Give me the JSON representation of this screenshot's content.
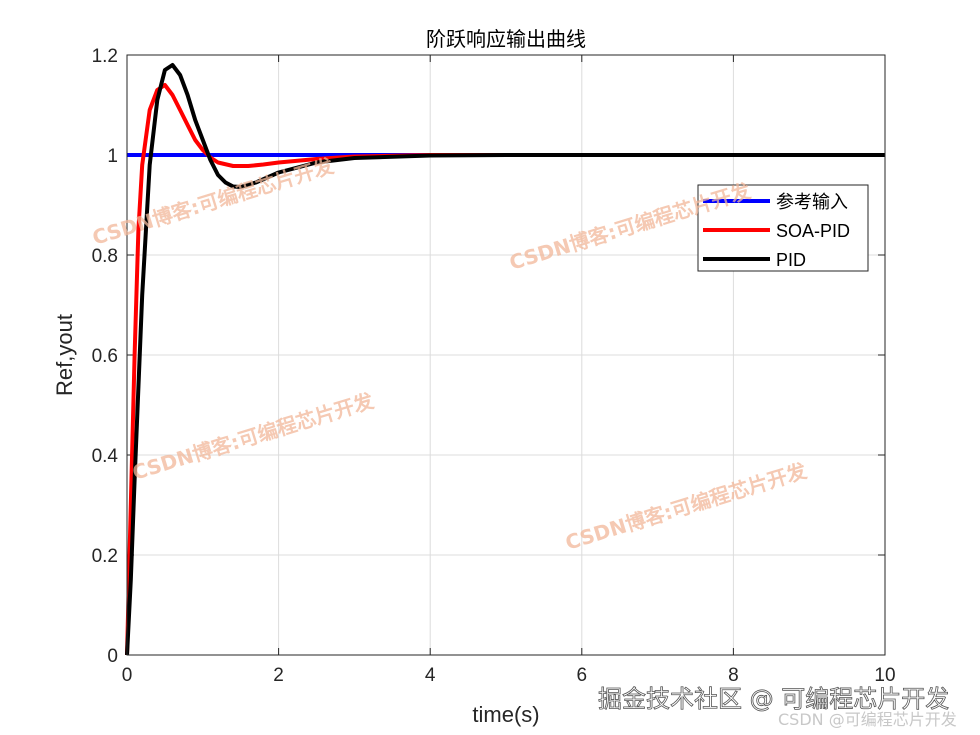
{
  "chart_data": {
    "type": "line",
    "title": "阶跃响应输出曲线",
    "xlabel": "time(s)",
    "ylabel": "Ref,yout",
    "xlim": [
      0,
      10
    ],
    "ylim": [
      0,
      1.2
    ],
    "xticks": [
      0,
      2,
      4,
      6,
      8,
      10
    ],
    "yticks": [
      0,
      0.2,
      0.4,
      0.6,
      0.8,
      1,
      1.2
    ],
    "xtick_labels": [
      "0",
      "2",
      "4",
      "6",
      "8",
      "10"
    ],
    "ytick_labels": [
      "0",
      "0.2",
      "0.4",
      "0.6",
      "0.8",
      "1",
      "1.2"
    ],
    "grid": true,
    "legend_placement": "right",
    "series": [
      {
        "name": "参考输入",
        "color": "#0000ff",
        "points": [
          [
            0,
            1
          ],
          [
            10,
            1
          ]
        ]
      },
      {
        "name": "SOA-PID",
        "color": "#ff0000",
        "points": [
          [
            0,
            0
          ],
          [
            0.05,
            0.3
          ],
          [
            0.1,
            0.6
          ],
          [
            0.15,
            0.85
          ],
          [
            0.2,
            0.98
          ],
          [
            0.3,
            1.09
          ],
          [
            0.4,
            1.13
          ],
          [
            0.5,
            1.14
          ],
          [
            0.6,
            1.12
          ],
          [
            0.7,
            1.09
          ],
          [
            0.8,
            1.06
          ],
          [
            0.9,
            1.03
          ],
          [
            1.0,
            1.01
          ],
          [
            1.1,
            0.995
          ],
          [
            1.2,
            0.985
          ],
          [
            1.4,
            0.978
          ],
          [
            1.6,
            0.978
          ],
          [
            1.8,
            0.981
          ],
          [
            2.0,
            0.985
          ],
          [
            2.5,
            0.992
          ],
          [
            3,
            0.997
          ],
          [
            4,
            1.0
          ],
          [
            10,
            1.0
          ]
        ]
      },
      {
        "name": "PID",
        "color": "#000000",
        "points": [
          [
            0,
            0
          ],
          [
            0.05,
            0.15
          ],
          [
            0.1,
            0.35
          ],
          [
            0.2,
            0.72
          ],
          [
            0.3,
            0.98
          ],
          [
            0.4,
            1.11
          ],
          [
            0.5,
            1.17
          ],
          [
            0.6,
            1.18
          ],
          [
            0.7,
            1.16
          ],
          [
            0.8,
            1.12
          ],
          [
            0.9,
            1.07
          ],
          [
            1.0,
            1.03
          ],
          [
            1.1,
            0.99
          ],
          [
            1.2,
            0.96
          ],
          [
            1.3,
            0.945
          ],
          [
            1.4,
            0.937
          ],
          [
            1.5,
            0.936
          ],
          [
            1.7,
            0.945
          ],
          [
            2.0,
            0.965
          ],
          [
            2.5,
            0.985
          ],
          [
            3,
            0.994
          ],
          [
            4,
            0.999
          ],
          [
            5,
            1.0
          ],
          [
            10,
            1.0
          ]
        ]
      }
    ]
  },
  "watermarks": {
    "diagonal": "CSDN博客:可编程芯片开发",
    "juejin": "掘金技术社区 @ 可编程芯片开发",
    "csdn": "CSDN @可编程芯片开发"
  }
}
